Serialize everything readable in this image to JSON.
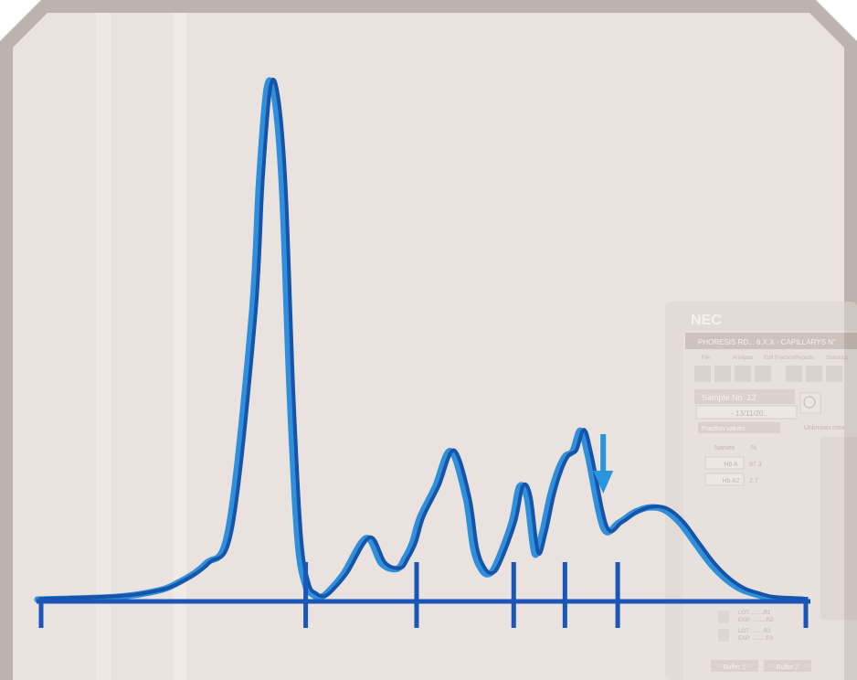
{
  "colors": {
    "frame": "#bdb3ae",
    "background": "#e9e2de",
    "curve_dark": "#1554a8",
    "curve_light": "#2f8fda",
    "baseline": "#1a56b8",
    "arrow": "#2a95dc"
  },
  "monitor": {
    "brand": "NEC",
    "window_title": "PHORESIS RD... 6.X.X - CAPILLARYS N°",
    "menu": [
      "File",
      "Analysis",
      "Edit Fraction",
      "Reports",
      "Statistics"
    ],
    "sample_label": "Sample No. 12",
    "sample_date": "- 13/11/20..",
    "fraction_header": "Fraction values",
    "right_header": "Unknown mes",
    "table": {
      "col_name": "Names",
      "col_value": "%",
      "rows": [
        {
          "name": "Hb A",
          "value": "97.3"
        },
        {
          "name": "Hb A2",
          "value": "2.7"
        }
      ]
    },
    "lots": [
      {
        "lot": "LOT: ........R1",
        "exp": "EXP: .........R2"
      },
      {
        "lot": "LOT: ........R3",
        "exp": "EXP: .........R3"
      }
    ],
    "bottom_buttons": [
      "Buffer 1",
      "Buffer 2"
    ]
  },
  "chart_data": {
    "type": "line",
    "title": "",
    "xlabel": "",
    "ylabel": "",
    "x_range": [
      0,
      100
    ],
    "y_range": [
      0,
      100
    ],
    "grid": false,
    "legend": "none",
    "series": [
      {
        "x": [
          0,
          10,
          15,
          18,
          22,
          25,
          28,
          29,
          30,
          31,
          32,
          33,
          34,
          35,
          36,
          37,
          38,
          40,
          43,
          45,
          47,
          48,
          49,
          50,
          52,
          54,
          56,
          57,
          58,
          59,
          60,
          62,
          63,
          64,
          65,
          66,
          67,
          68,
          69,
          70,
          71,
          72,
          74,
          76,
          78,
          80,
          82,
          84,
          86,
          88,
          90,
          92,
          94,
          96,
          100
        ],
        "values": [
          0,
          0.5,
          1.5,
          3,
          7,
          14,
          55,
          82,
          100,
          98,
          80,
          40,
          12,
          3,
          1,
          0.5,
          1.5,
          5,
          12,
          7,
          6,
          8,
          11,
          16,
          22,
          29,
          20,
          10,
          6,
          5,
          7,
          15,
          22,
          20,
          9,
          13,
          20,
          25,
          28,
          29,
          33,
          28,
          14,
          15,
          17,
          18,
          17.5,
          15,
          11,
          7,
          4,
          2,
          1,
          0.3,
          0
        ]
      }
    ],
    "fraction_boundaries": [
      0,
      34.6,
      49.1,
      61.8,
      68.5,
      75.4,
      100
    ],
    "marker": {
      "x": 73.5,
      "label": ""
    }
  }
}
